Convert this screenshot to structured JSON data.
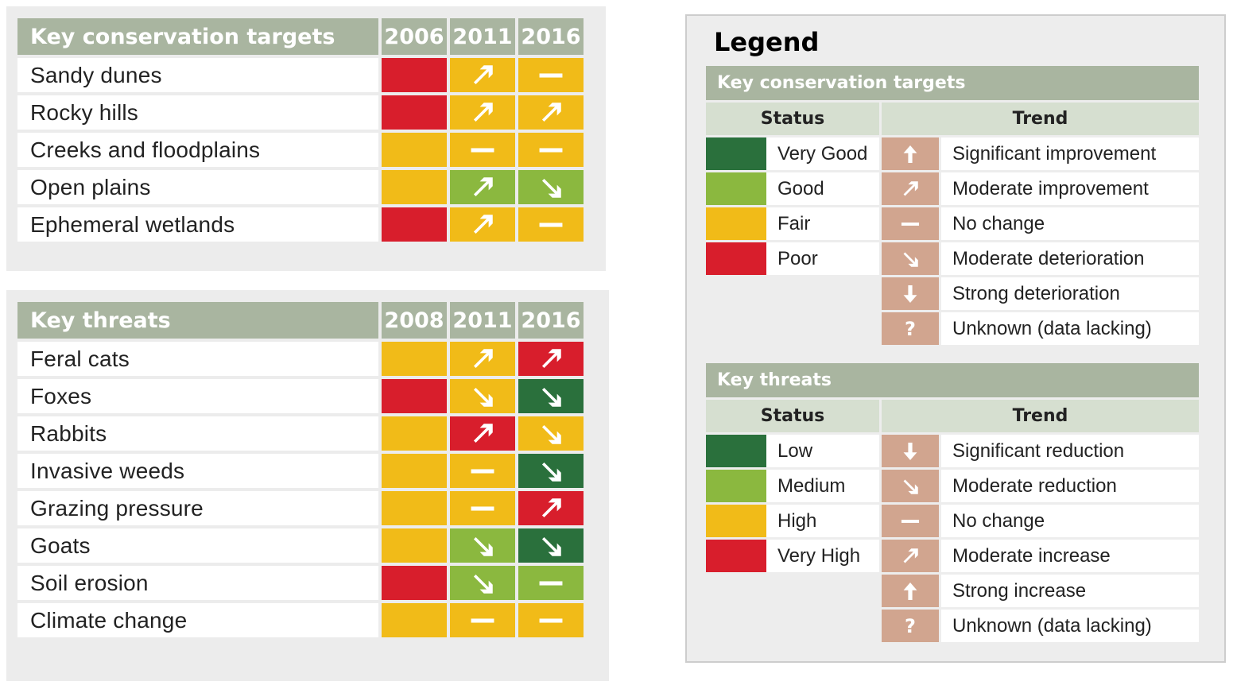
{
  "colors": {
    "very_good": "#2a703c",
    "good": "#8bb83f",
    "fair": "#f1bb18",
    "poor": "#d81e2c",
    "trend_bg": "#d1a58f"
  },
  "conservation": {
    "header": "Key conservation targets",
    "years": [
      "2006",
      "2011",
      "2016"
    ],
    "rows": [
      {
        "name": "Sandy dunes",
        "cells": [
          {
            "c": "poor",
            "i": ""
          },
          {
            "c": "fair",
            "i": "up-right"
          },
          {
            "c": "fair",
            "i": "dash"
          }
        ]
      },
      {
        "name": "Rocky hills",
        "cells": [
          {
            "c": "poor",
            "i": ""
          },
          {
            "c": "fair",
            "i": "up-right"
          },
          {
            "c": "fair",
            "i": "up-right"
          }
        ]
      },
      {
        "name": "Creeks and floodplains",
        "cells": [
          {
            "c": "fair",
            "i": ""
          },
          {
            "c": "fair",
            "i": "dash"
          },
          {
            "c": "fair",
            "i": "dash"
          }
        ]
      },
      {
        "name": "Open plains",
        "cells": [
          {
            "c": "fair",
            "i": ""
          },
          {
            "c": "good",
            "i": "up-right"
          },
          {
            "c": "good",
            "i": "down-right"
          }
        ]
      },
      {
        "name": "Ephemeral wetlands",
        "cells": [
          {
            "c": "poor",
            "i": ""
          },
          {
            "c": "fair",
            "i": "up-right"
          },
          {
            "c": "fair",
            "i": "dash"
          }
        ]
      }
    ]
  },
  "threats": {
    "header": "Key threats",
    "years": [
      "2008",
      "2011",
      "2016"
    ],
    "rows": [
      {
        "name": "Feral cats",
        "cells": [
          {
            "c": "fair",
            "i": ""
          },
          {
            "c": "fair",
            "i": "up-right"
          },
          {
            "c": "poor",
            "i": "up-right"
          }
        ]
      },
      {
        "name": "Foxes",
        "cells": [
          {
            "c": "poor",
            "i": ""
          },
          {
            "c": "fair",
            "i": "down-right"
          },
          {
            "c": "very_good",
            "i": "down-right"
          }
        ]
      },
      {
        "name": "Rabbits",
        "cells": [
          {
            "c": "fair",
            "i": ""
          },
          {
            "c": "poor",
            "i": "up-right"
          },
          {
            "c": "fair",
            "i": "down-right"
          }
        ]
      },
      {
        "name": "Invasive weeds",
        "cells": [
          {
            "c": "fair",
            "i": ""
          },
          {
            "c": "fair",
            "i": "dash"
          },
          {
            "c": "very_good",
            "i": "down-right"
          }
        ]
      },
      {
        "name": "Grazing pressure",
        "cells": [
          {
            "c": "fair",
            "i": ""
          },
          {
            "c": "fair",
            "i": "dash"
          },
          {
            "c": "poor",
            "i": "up-right"
          }
        ]
      },
      {
        "name": "Goats",
        "cells": [
          {
            "c": "fair",
            "i": ""
          },
          {
            "c": "good",
            "i": "down-right"
          },
          {
            "c": "very_good",
            "i": "down-right"
          }
        ]
      },
      {
        "name": "Soil erosion",
        "cells": [
          {
            "c": "poor",
            "i": ""
          },
          {
            "c": "good",
            "i": "down-right"
          },
          {
            "c": "good",
            "i": "dash"
          }
        ]
      },
      {
        "name": "Climate change",
        "cells": [
          {
            "c": "fair",
            "i": ""
          },
          {
            "c": "fair",
            "i": "dash"
          },
          {
            "c": "fair",
            "i": "dash"
          }
        ]
      }
    ]
  },
  "legend": {
    "title": "Legend",
    "conservation": {
      "header": "Key conservation targets",
      "status_label": "Status",
      "trend_label": "Trend",
      "status": [
        {
          "c": "very_good",
          "label": "Very Good"
        },
        {
          "c": "good",
          "label": "Good"
        },
        {
          "c": "fair",
          "label": "Fair"
        },
        {
          "c": "poor",
          "label": "Poor"
        }
      ],
      "trend": [
        {
          "i": "up",
          "label": "Significant improvement"
        },
        {
          "i": "up-right",
          "label": "Moderate improvement"
        },
        {
          "i": "dash",
          "label": "No change"
        },
        {
          "i": "down-right",
          "label": "Moderate deterioration"
        },
        {
          "i": "down",
          "label": "Strong deterioration"
        },
        {
          "i": "question",
          "label": "Unknown (data lacking)"
        }
      ]
    },
    "threats": {
      "header": "Key threats",
      "status_label": "Status",
      "trend_label": "Trend",
      "status": [
        {
          "c": "very_good",
          "label": "Low"
        },
        {
          "c": "good",
          "label": "Medium"
        },
        {
          "c": "fair",
          "label": "High"
        },
        {
          "c": "poor",
          "label": "Very High"
        }
      ],
      "trend": [
        {
          "i": "down",
          "label": "Significant reduction"
        },
        {
          "i": "down-right",
          "label": "Moderate reduction"
        },
        {
          "i": "dash",
          "label": "No change"
        },
        {
          "i": "up-right",
          "label": "Moderate increase"
        },
        {
          "i": "up",
          "label": "Strong increase"
        },
        {
          "i": "question",
          "label": "Unknown (data lacking)"
        }
      ]
    }
  }
}
